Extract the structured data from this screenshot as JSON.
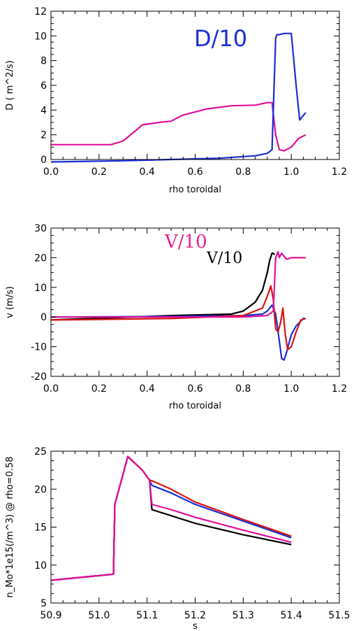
{
  "chart_data": [
    {
      "type": "line",
      "xlabel": "rho toroidal",
      "ylabel": "D ( m^2/s)",
      "xlim": [
        0.0,
        1.2
      ],
      "ylim": [
        0,
        12
      ],
      "xticks": [
        "0.0",
        "0.2",
        "0.4",
        "0.6",
        "0.8",
        "1.0",
        "1.2"
      ],
      "yticks": [
        "0",
        "2",
        "4",
        "6",
        "8",
        "10",
        "12"
      ],
      "annotations": [
        {
          "text": "D/10",
          "color": "#1a2ed6",
          "font": "sans"
        }
      ],
      "series": [
        {
          "color": "#e0109a",
          "x": [
            0.0,
            0.1,
            0.25,
            0.3,
            0.35,
            0.38,
            0.45,
            0.5,
            0.55,
            0.65,
            0.75,
            0.85,
            0.9,
            0.92,
            0.935,
            0.95,
            0.97,
            1.0,
            1.03,
            1.06
          ],
          "y": [
            1.2,
            1.2,
            1.2,
            1.5,
            2.3,
            2.8,
            3.0,
            3.1,
            3.6,
            4.1,
            4.35,
            4.4,
            4.6,
            4.6,
            2.0,
            0.8,
            0.7,
            1.0,
            1.7,
            2.0
          ]
        },
        {
          "color": "#1a2ed6",
          "x": [
            0.0,
            0.3,
            0.5,
            0.7,
            0.85,
            0.9,
            0.92,
            0.935,
            0.94,
            0.95,
            0.97,
            1.0,
            1.02,
            1.035,
            1.06
          ],
          "y": [
            -0.2,
            -0.1,
            0.0,
            0.1,
            0.3,
            0.5,
            0.8,
            9.8,
            10.1,
            10.1,
            10.2,
            10.2,
            6.0,
            3.2,
            3.8
          ]
        }
      ]
    },
    {
      "type": "line",
      "xlabel": "rho toroidal",
      "ylabel": "v (m/s)",
      "xlim": [
        0.0,
        1.2
      ],
      "ylim": [
        -20,
        30
      ],
      "xticks": [
        "0.0",
        "0.2",
        "0.4",
        "0.6",
        "0.8",
        "1.0",
        "1.2"
      ],
      "yticks": [
        "-20",
        "-10",
        "0",
        "10",
        "20",
        "30"
      ],
      "annotations": [
        {
          "text": "V/10",
          "color": "#e8208e",
          "font": "serif"
        },
        {
          "text": "V/10",
          "color": "#000000",
          "font": "serif"
        }
      ],
      "series": [
        {
          "color": "#000000",
          "x": [
            0.0,
            0.5,
            0.75,
            0.8,
            0.85,
            0.88,
            0.9,
            0.91,
            0.92,
            0.925,
            0.93
          ],
          "y": [
            -1.0,
            0.5,
            1.0,
            2.0,
            5.0,
            9.0,
            15.0,
            19.0,
            21.5,
            21.5,
            21.0
          ]
        },
        {
          "color": "#1a2ed6",
          "x": [
            0.0,
            0.5,
            0.8,
            0.88,
            0.9,
            0.92,
            0.935,
            0.95,
            0.96,
            0.97,
            0.98,
            0.99,
            1.0,
            1.02,
            1.05,
            1.06
          ],
          "y": [
            0.0,
            0.2,
            0.5,
            1.0,
            2.0,
            4.0,
            1.0,
            -8.0,
            -14.0,
            -14.5,
            -12.0,
            -9.0,
            -6.0,
            -3.0,
            -0.5,
            -0.5
          ]
        },
        {
          "color": "#d8140e",
          "x": [
            0.0,
            0.5,
            0.8,
            0.88,
            0.9,
            0.915,
            0.925,
            0.935,
            0.945,
            0.955,
            0.965,
            0.975,
            0.985,
            1.0,
            1.02,
            1.04,
            1.06
          ],
          "y": [
            -1.0,
            -0.5,
            0.5,
            3.0,
            7.0,
            10.5,
            6.0,
            -4.0,
            -5.0,
            -2.0,
            3.0,
            -6.0,
            -11.0,
            -10.0,
            -5.0,
            -1.0,
            -0.5
          ]
        },
        {
          "color": "#e0109a",
          "x": [
            0.0,
            0.8,
            0.9,
            0.925,
            0.935,
            0.945,
            0.95,
            0.96,
            0.97,
            0.98,
            1.0,
            1.06
          ],
          "y": [
            0.0,
            0.0,
            0.5,
            2.0,
            20.0,
            22.0,
            20.0,
            21.5,
            20.5,
            19.5,
            20.0,
            20.0
          ]
        }
      ]
    },
    {
      "type": "line",
      "xlabel": "s",
      "ylabel": "n_Mo*1e15(/m^3) @ rho=0.58",
      "xlim": [
        50.9,
        51.5
      ],
      "ylim": [
        5,
        25
      ],
      "xticks": [
        "50.9",
        "51.0",
        "51.1",
        "51.2",
        "51.3",
        "51.4",
        "51.5"
      ],
      "yticks": [
        "5",
        "10",
        "15",
        "20",
        "25"
      ],
      "annotations": [],
      "series": [
        {
          "color": "#000000",
          "x": [
            50.9,
            51.03,
            51.033,
            51.06,
            51.09,
            51.105,
            51.11,
            51.15,
            51.2,
            51.3,
            51.4
          ],
          "y": [
            8.0,
            8.8,
            18.0,
            24.3,
            22.5,
            21.2,
            17.3,
            16.5,
            15.5,
            14.0,
            12.7
          ]
        },
        {
          "color": "#1a2ed6",
          "x": [
            50.9,
            51.03,
            51.033,
            51.06,
            51.09,
            51.105,
            51.11,
            51.15,
            51.2,
            51.3,
            51.4
          ],
          "y": [
            8.0,
            8.8,
            18.0,
            24.3,
            22.5,
            21.2,
            20.5,
            19.5,
            18.0,
            15.8,
            13.6
          ]
        },
        {
          "color": "#d8140e",
          "x": [
            50.9,
            51.03,
            51.033,
            51.06,
            51.09,
            51.105,
            51.11,
            51.15,
            51.2,
            51.3,
            51.4
          ],
          "y": [
            8.0,
            8.8,
            18.0,
            24.3,
            22.5,
            21.2,
            21.1,
            20.0,
            18.3,
            16.0,
            13.8
          ]
        },
        {
          "color": "#e0109a",
          "x": [
            50.9,
            51.03,
            51.033,
            51.06,
            51.09,
            51.105,
            51.11,
            51.15,
            51.2,
            51.3,
            51.4
          ],
          "y": [
            8.0,
            8.8,
            18.0,
            24.3,
            22.5,
            21.2,
            18.0,
            17.3,
            16.3,
            14.6,
            13.0
          ]
        }
      ]
    }
  ]
}
